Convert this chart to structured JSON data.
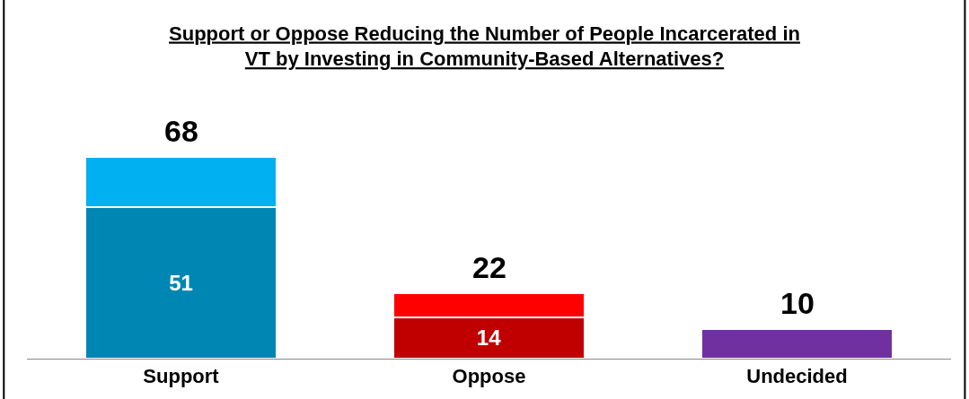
{
  "chart_data": {
    "type": "bar",
    "stacked": true,
    "title": "Support or Oppose Reducing the Number of People Incarcerated in VT by Investing in Community-Based Alternatives?",
    "categories": [
      "Support",
      "Oppose",
      "Undecided"
    ],
    "series": [
      {
        "colors": [
          "#0086b3",
          "#c00000",
          "#7030a0"
        ],
        "values": [
          51,
          14,
          10
        ],
        "value_labels": [
          "51",
          "14",
          null
        ]
      },
      {
        "colors": [
          "#00b0f0",
          "#ff0000",
          null
        ],
        "values": [
          17,
          8,
          null
        ]
      }
    ],
    "totals": [
      "68",
      "22",
      "10"
    ],
    "legend": false
  }
}
